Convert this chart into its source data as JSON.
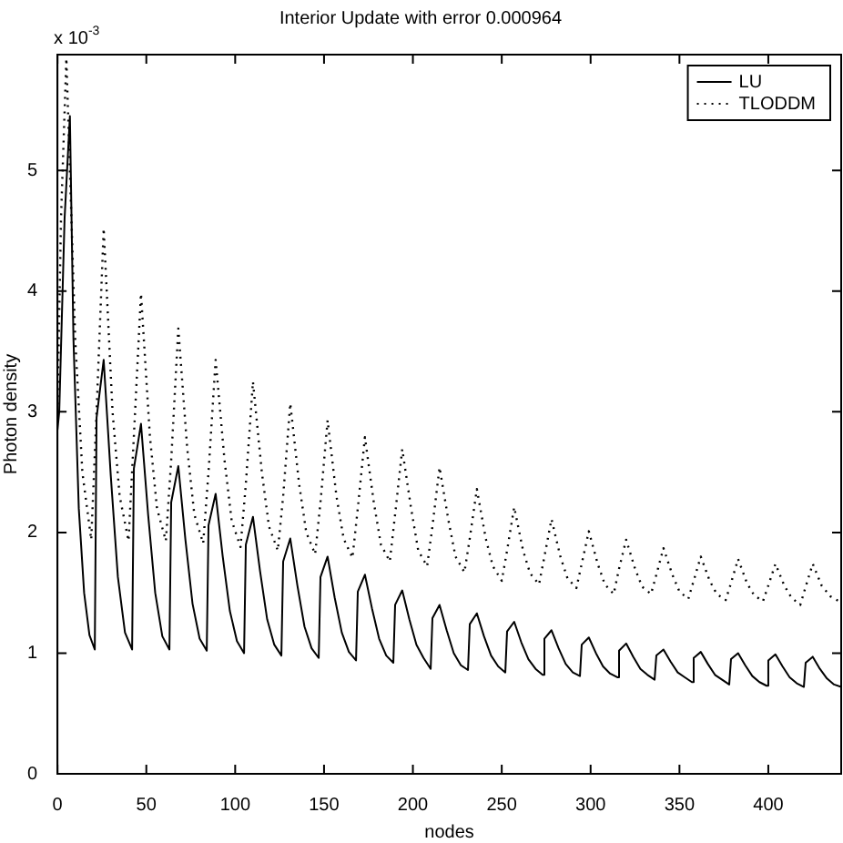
{
  "chart_data": {
    "type": "line",
    "title": "Interior Update with error 0.000964",
    "xlabel": "nodes",
    "ylabel": "Photon density",
    "annotations": [
      "x 10$^{-3}$"
    ],
    "xlim": [
      0,
      441
    ],
    "xticks": [
      0,
      50,
      100,
      150,
      200,
      250,
      300,
      350,
      400
    ],
    "ylim": [
      0,
      5.96
    ],
    "yticks": [
      0,
      1,
      2,
      3,
      4,
      5
    ],
    "grid": false,
    "legend": "top right",
    "marker": "none",
    "series": [
      {
        "name": "LU",
        "color": "#000000",
        "line_style": "solid",
        "x": [
          0,
          1,
          4,
          7,
          9,
          12,
          15,
          18,
          21,
          22,
          26,
          30,
          34,
          38,
          42,
          43,
          47,
          51,
          55,
          59,
          63,
          64,
          68,
          72,
          76,
          80,
          84,
          85,
          89,
          93,
          97,
          101,
          105,
          106,
          110,
          114,
          118,
          122,
          126,
          127,
          131,
          135,
          139,
          143,
          147,
          148,
          152,
          156,
          160,
          164,
          168,
          169,
          173,
          177,
          181,
          185,
          189,
          190,
          194,
          198,
          202,
          206,
          210,
          211,
          215,
          219,
          223,
          227,
          231,
          232,
          236,
          240,
          244,
          248,
          252,
          253,
          257,
          261,
          265,
          269,
          273,
          274,
          278,
          282,
          286,
          290,
          294,
          295,
          299,
          303,
          307,
          311,
          315,
          316,
          320,
          324,
          328,
          332,
          336,
          337,
          341,
          345,
          349,
          353,
          357,
          358,
          362,
          366,
          370,
          374,
          378,
          379,
          383,
          387,
          391,
          395,
          399,
          400,
          404,
          408,
          412,
          416,
          420,
          421,
          425,
          429,
          433,
          437,
          441
        ],
        "values": [
          2.85,
          3.0,
          4.6,
          5.45,
          3.6,
          2.2,
          1.5,
          1.15,
          1.03,
          2.95,
          3.43,
          2.47,
          1.63,
          1.17,
          1.03,
          2.53,
          2.9,
          2.15,
          1.5,
          1.14,
          1.03,
          2.25,
          2.55,
          1.94,
          1.41,
          1.12,
          1.02,
          2.06,
          2.32,
          1.8,
          1.35,
          1.1,
          1.0,
          1.9,
          2.13,
          1.68,
          1.28,
          1.07,
          0.98,
          1.76,
          1.95,
          1.56,
          1.22,
          1.04,
          0.96,
          1.63,
          1.8,
          1.46,
          1.17,
          1.01,
          0.94,
          1.51,
          1.65,
          1.37,
          1.12,
          0.98,
          0.92,
          1.4,
          1.52,
          1.28,
          1.07,
          0.96,
          0.87,
          1.29,
          1.4,
          1.19,
          1.0,
          0.9,
          0.86,
          1.24,
          1.33,
          1.14,
          0.98,
          0.89,
          0.84,
          1.18,
          1.26,
          1.09,
          0.95,
          0.87,
          0.82,
          1.12,
          1.19,
          1.04,
          0.91,
          0.84,
          0.81,
          1.07,
          1.13,
          1.0,
          0.89,
          0.83,
          0.8,
          1.02,
          1.08,
          0.97,
          0.87,
          0.82,
          0.78,
          0.98,
          1.03,
          0.93,
          0.84,
          0.8,
          0.76,
          0.96,
          1.01,
          0.91,
          0.82,
          0.78,
          0.74,
          0.95,
          1.0,
          0.9,
          0.81,
          0.76,
          0.73,
          0.94,
          0.99,
          0.89,
          0.8,
          0.75,
          0.72,
          0.92,
          0.97,
          0.87,
          0.79,
          0.74,
          0.72
        ]
      },
      {
        "name": "TLODDM",
        "color": "#000000",
        "line_style": "dotted",
        "x": [
          0,
          2,
          5,
          10,
          14,
          19,
          22,
          26,
          31,
          35,
          40,
          43,
          47,
          52,
          56,
          61,
          64,
          68,
          73,
          77,
          82,
          85,
          89,
          94,
          98,
          103,
          106,
          110,
          115,
          119,
          124,
          127,
          131,
          136,
          140,
          145,
          148,
          152,
          157,
          161,
          166,
          169,
          173,
          178,
          182,
          187,
          190,
          194,
          199,
          203,
          208,
          211,
          215,
          220,
          224,
          229,
          232,
          236,
          241,
          245,
          250,
          253,
          257,
          262,
          266,
          271,
          274,
          278,
          283,
          287,
          292,
          295,
          299,
          304,
          308,
          313,
          316,
          320,
          325,
          329,
          334,
          337,
          341,
          346,
          350,
          355,
          358,
          362,
          367,
          371,
          376,
          379,
          383,
          388,
          392,
          397,
          400,
          404,
          409,
          413,
          418,
          421,
          425,
          430,
          435,
          441
        ],
        "values": [
          3.0,
          4.6,
          5.93,
          3.6,
          2.5,
          1.94,
          3.0,
          4.52,
          3.0,
          2.3,
          1.93,
          2.8,
          3.98,
          2.8,
          2.2,
          1.93,
          2.6,
          3.69,
          2.7,
          2.15,
          1.91,
          2.5,
          3.43,
          2.6,
          2.1,
          1.88,
          2.4,
          3.25,
          2.5,
          2.05,
          1.85,
          2.3,
          3.07,
          2.4,
          2.0,
          1.82,
          2.25,
          2.93,
          2.3,
          1.95,
          1.79,
          2.2,
          2.79,
          2.25,
          1.9,
          1.76,
          2.15,
          2.69,
          2.2,
          1.85,
          1.72,
          2.05,
          2.54,
          2.1,
          1.8,
          1.67,
          1.95,
          2.36,
          1.95,
          1.72,
          1.6,
          1.85,
          2.21,
          1.85,
          1.66,
          1.57,
          1.8,
          2.11,
          1.8,
          1.62,
          1.54,
          1.74,
          2.01,
          1.74,
          1.57,
          1.49,
          1.7,
          1.94,
          1.7,
          1.55,
          1.49,
          1.65,
          1.87,
          1.65,
          1.51,
          1.45,
          1.6,
          1.8,
          1.6,
          1.49,
          1.44,
          1.58,
          1.78,
          1.58,
          1.48,
          1.43,
          1.56,
          1.74,
          1.56,
          1.46,
          1.4,
          1.55,
          1.74,
          1.56,
          1.47,
          1.42
        ]
      }
    ]
  }
}
